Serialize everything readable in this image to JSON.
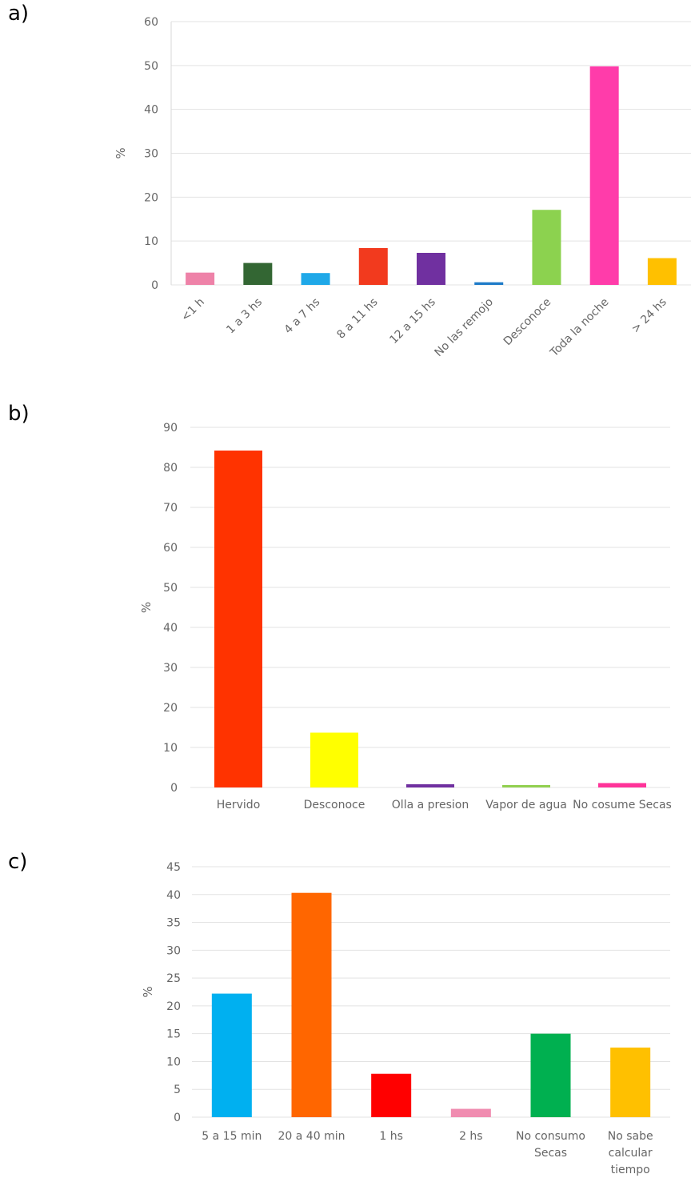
{
  "chart_data": [
    {
      "panel": "a)",
      "type": "bar",
      "ylabel": "%",
      "ylim": [
        0,
        60
      ],
      "yticks": [
        "0",
        "10",
        "20",
        "30",
        "40",
        "50",
        "60"
      ],
      "grid": true,
      "categories": [
        "<1 h",
        "1 a 3 hs",
        "4 a 7 hs",
        "8 a 11 hs",
        "12 a 15 hs",
        "No las remojo",
        "Desconoce",
        "Toda la noche",
        "> 24 hs"
      ],
      "values": [
        2.8,
        5.0,
        2.7,
        8.4,
        7.3,
        0.6,
        17.1,
        49.8,
        6.1
      ],
      "colors": [
        "#EE82A8",
        "#336633",
        "#1FA8E8",
        "#F23A1E",
        "#7030A0",
        "#1F7BC8",
        "#8CD24F",
        "#FF3CAA",
        "#FFC000"
      ]
    },
    {
      "panel": "b)",
      "type": "bar",
      "ylabel": "%",
      "ylim": [
        0,
        90
      ],
      "yticks": [
        "0",
        "10",
        "20",
        "30",
        "40",
        "50",
        "60",
        "70",
        "80",
        "90"
      ],
      "grid": true,
      "categories": [
        "Hervido",
        "Desconoce",
        "Olla a presion",
        "Vapor de agua",
        "No cosume Secas"
      ],
      "values": [
        84.2,
        13.7,
        0.8,
        0.6,
        1.1
      ],
      "colors": [
        "#FF3300",
        "#FFFF00",
        "#7030A0",
        "#92D050",
        "#FF3399"
      ]
    },
    {
      "panel": "c)",
      "type": "bar",
      "ylabel": "%",
      "ylim": [
        0,
        45
      ],
      "yticks": [
        "0",
        "5",
        "10",
        "15",
        "20",
        "25",
        "30",
        "35",
        "40",
        "45"
      ],
      "grid": true,
      "categories": [
        "5 a 15 min",
        "20 a 40 min",
        "1 hs",
        "2 hs",
        "No consumo Secas",
        "No sabe calcular tiempo"
      ],
      "category_lines": [
        [
          "5 a 15 min"
        ],
        [
          "20 a 40 min"
        ],
        [
          "1 hs"
        ],
        [
          "2 hs"
        ],
        [
          "No consumo",
          "Secas"
        ],
        [
          "No sabe",
          "calcular",
          "tiempo"
        ]
      ],
      "values": [
        22.2,
        40.3,
        7.8,
        1.5,
        15.0,
        12.5
      ],
      "colors": [
        "#00B0F0",
        "#FF6600",
        "#FF0000",
        "#F08CB0",
        "#00B050",
        "#FFC000"
      ]
    }
  ]
}
